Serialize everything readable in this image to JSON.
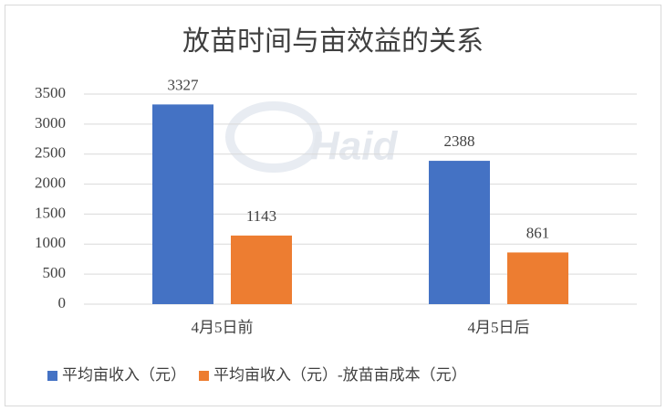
{
  "chart_data": {
    "type": "bar",
    "title": "放苗时间与亩效益的关系",
    "watermark": "Haid",
    "categories": [
      "4月5日前",
      "4月5日后"
    ],
    "series": [
      {
        "name": "平均亩收入（元）",
        "color": "#4472c4",
        "values": [
          3327,
          2388
        ]
      },
      {
        "name": "平均亩收入（元）-放苗亩成本（元）",
        "color": "#ed7d31",
        "values": [
          1143,
          861
        ]
      }
    ],
    "ylim": [
      0,
      3500
    ],
    "yticks": [
      0,
      500,
      1000,
      1500,
      2000,
      2500,
      3000,
      3500
    ],
    "grid": true,
    "legend": "bottom"
  }
}
